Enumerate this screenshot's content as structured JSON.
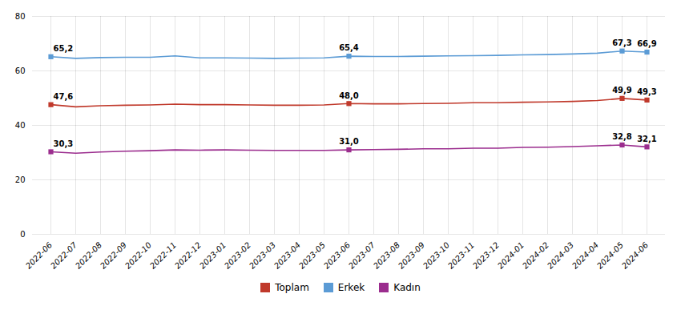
{
  "chart_data": {
    "type": "line",
    "categories": [
      "2022-06",
      "2022-07",
      "2022-08",
      "2022-09",
      "2022-10",
      "2022-11",
      "2022-12",
      "2023-01",
      "2023-02",
      "2023-03",
      "2023-04",
      "2023-05",
      "2023-06",
      "2023-07",
      "2023-08",
      "2023-09",
      "2023-10",
      "2023-11",
      "2023-12",
      "2024-01",
      "2024-02",
      "2024-03",
      "2024-04",
      "2024-05",
      "2024-06"
    ],
    "series": [
      {
        "name": "Toplam",
        "color": "#c0392b",
        "values": [
          47.6,
          46.8,
          47.2,
          47.4,
          47.5,
          47.8,
          47.6,
          47.6,
          47.5,
          47.4,
          47.4,
          47.5,
          48.0,
          47.9,
          47.9,
          48.0,
          48.1,
          48.3,
          48.3,
          48.5,
          48.6,
          48.8,
          49.1,
          49.9,
          49.3
        ],
        "value_labels": [
          "47,6",
          null,
          null,
          null,
          null,
          null,
          null,
          null,
          null,
          null,
          null,
          null,
          "48,0",
          null,
          null,
          null,
          null,
          null,
          null,
          null,
          null,
          null,
          null,
          "49,9",
          "49,3"
        ]
      },
      {
        "name": "Erkek",
        "color": "#5b9bd5",
        "values": [
          65.2,
          64.6,
          64.9,
          65.0,
          65.0,
          65.5,
          64.8,
          64.8,
          64.7,
          64.6,
          64.7,
          64.8,
          65.4,
          65.3,
          65.3,
          65.4,
          65.5,
          65.6,
          65.7,
          65.9,
          66.0,
          66.2,
          66.5,
          67.3,
          66.9
        ],
        "value_labels": [
          "65,2",
          null,
          null,
          null,
          null,
          null,
          null,
          null,
          null,
          null,
          null,
          null,
          "65,4",
          null,
          null,
          null,
          null,
          null,
          null,
          null,
          null,
          null,
          null,
          "67,3",
          "66,9"
        ]
      },
      {
        "name": "Kadın",
        "color": "#9b2d8e",
        "values": [
          30.3,
          29.8,
          30.2,
          30.5,
          30.7,
          31.0,
          30.9,
          31.0,
          30.9,
          30.8,
          30.8,
          30.8,
          31.0,
          31.1,
          31.2,
          31.4,
          31.4,
          31.6,
          31.6,
          31.9,
          32.0,
          32.2,
          32.5,
          32.8,
          32.1
        ],
        "value_labels": [
          "30,3",
          null,
          null,
          null,
          null,
          null,
          null,
          null,
          null,
          null,
          null,
          null,
          "31,0",
          null,
          null,
          null,
          null,
          null,
          null,
          null,
          null,
          null,
          null,
          "32,8",
          "32,1"
        ]
      }
    ],
    "ylim": [
      0,
      80
    ],
    "yticks": [
      0,
      20,
      40,
      60,
      80
    ],
    "grid": true,
    "legend": "bottom",
    "data_labels": true,
    "marker": "square"
  }
}
